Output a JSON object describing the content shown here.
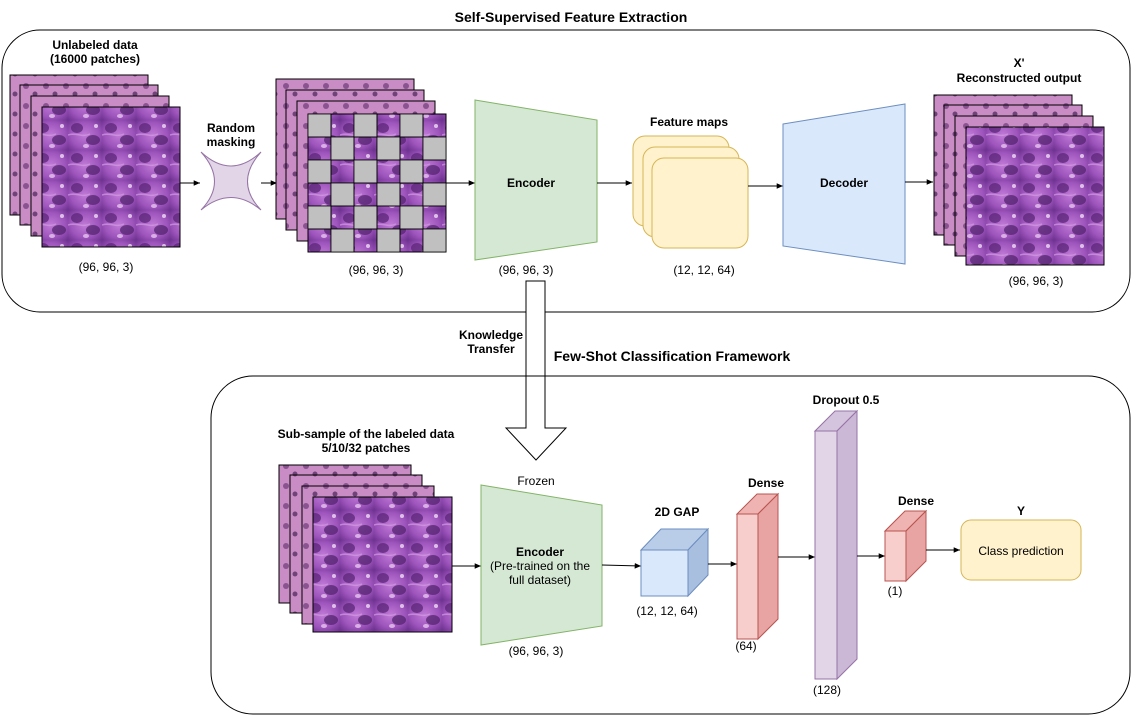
{
  "top": {
    "title": "Self-Supervised Feature Extraction",
    "unlabeled": {
      "line1": "Unlabeled data",
      "line2": "(16000 patches)",
      "shape": "(96, 96, 3)"
    },
    "masking": {
      "line1": "Random",
      "line2": "masking"
    },
    "masked_shape": "(96, 96, 3)",
    "encoder": {
      "label": "Encoder",
      "shape": "(96, 96, 3)"
    },
    "feature_maps": {
      "label": "Feature maps",
      "shape": "(12, 12, 64)"
    },
    "decoder": {
      "label": "Decoder"
    },
    "output": {
      "line1": "X'",
      "line2": "Reconstructed output",
      "shape": "(96, 96, 3)"
    }
  },
  "transfer": {
    "line1": "Knowledge",
    "line2": "Transfer"
  },
  "bottom": {
    "title": "Few-Shot Classification Framework",
    "labeled": {
      "line1": "Sub-sample of the labeled data",
      "line2": "5/10/32 patches"
    },
    "frozen": "Frozen",
    "encoder": {
      "title": "Encoder",
      "line1": "(Pre-trained on the",
      "line2": "full dataset)",
      "shape": "(96, 96, 3)"
    },
    "gap": {
      "label": "2D GAP",
      "shape": "(12, 12, 64)"
    },
    "dense1": {
      "label": "Dense",
      "shape": "(64)"
    },
    "dropout": {
      "label": "Dropout 0.5",
      "shape": "(128)"
    },
    "dense2": {
      "label": "Dense",
      "shape": "(1)"
    },
    "output": {
      "label": "Y",
      "text": "Class prediction"
    }
  },
  "colors": {
    "encoder_fill": "#d5e8d4",
    "encoder_stroke": "#82b366",
    "decoder_fill": "#dae8fc",
    "decoder_stroke": "#6c8ebf",
    "feature_fill": "#fff2cc",
    "feature_stroke": "#d6b656",
    "dense_fill": "#f8cecc",
    "dense_stroke": "#b85450",
    "dropout_fill": "#e1d5e7",
    "dropout_stroke": "#9673a6",
    "tissue": "#9b4fb8",
    "mask_gray": "#c0c0c0"
  }
}
